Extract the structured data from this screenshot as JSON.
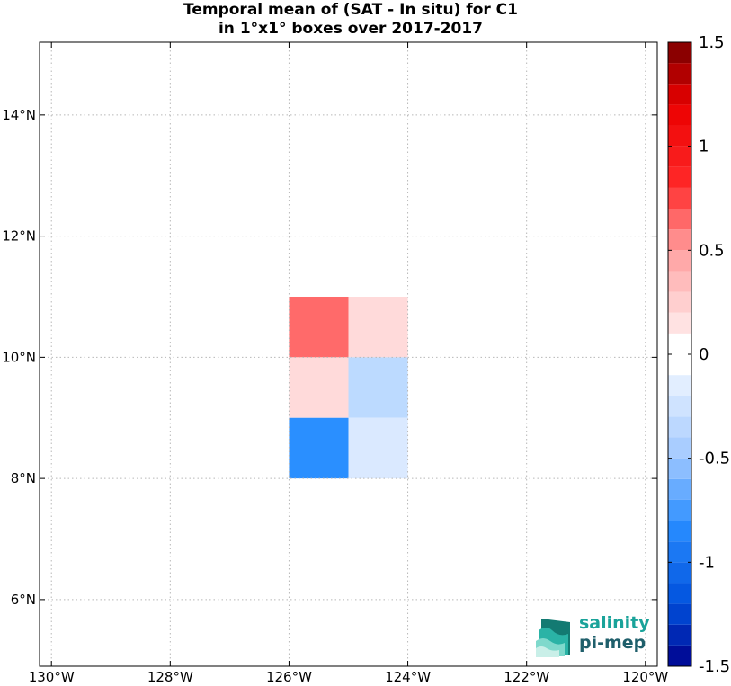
{
  "title": {
    "line1": "Temporal mean of (SAT - In situ) for C1",
    "line2": "in 1°x1° boxes over 2017-2017"
  },
  "map": {
    "lon_range": [
      -130.2,
      -119.8
    ],
    "lat_range": [
      4.9,
      15.2
    ],
    "lon_ticks": [
      {
        "value": -130,
        "label": "130°W"
      },
      {
        "value": -128,
        "label": "128°W"
      },
      {
        "value": -126,
        "label": "126°W"
      },
      {
        "value": -124,
        "label": "124°W"
      },
      {
        "value": -122,
        "label": "122°W"
      },
      {
        "value": -120,
        "label": "120°W"
      }
    ],
    "lat_ticks": [
      {
        "value": 6,
        "label": "6°N"
      },
      {
        "value": 8,
        "label": "8°N"
      },
      {
        "value": 10,
        "label": "10°N"
      },
      {
        "value": 12,
        "label": "12°N"
      },
      {
        "value": 14,
        "label": "14°N"
      }
    ],
    "grid": true,
    "cells": [
      {
        "lon_min": -126,
        "lat_min": 10,
        "value": 0.45,
        "color": "#ff6a6a"
      },
      {
        "lon_min": -125,
        "lat_min": 10,
        "value": 0.15,
        "color": "#ffdada"
      },
      {
        "lon_min": -126,
        "lat_min": 9,
        "value": 0.15,
        "color": "#ffdada"
      },
      {
        "lon_min": -125,
        "lat_min": 9,
        "value": -0.25,
        "color": "#bcdaff"
      },
      {
        "lon_min": -126,
        "lat_min": 8,
        "value": -0.75,
        "color": "#2a8fff"
      },
      {
        "lon_min": -125,
        "lat_min": 8,
        "value": -0.15,
        "color": "#dae9ff"
      }
    ]
  },
  "colorbar": {
    "range": [
      -1.5,
      1.5
    ],
    "levels": 30,
    "ticks": [
      {
        "value": 1.5,
        "label": "1.5"
      },
      {
        "value": 1,
        "label": "1"
      },
      {
        "value": 0.5,
        "label": "0.5"
      },
      {
        "value": 0,
        "label": "0"
      },
      {
        "value": -0.5,
        "label": "-0.5"
      },
      {
        "value": -1,
        "label": "-1"
      },
      {
        "value": -1.5,
        "label": "-1.5"
      }
    ]
  },
  "logo": {
    "line1": "salinity",
    "line2": "pi-mep"
  }
}
